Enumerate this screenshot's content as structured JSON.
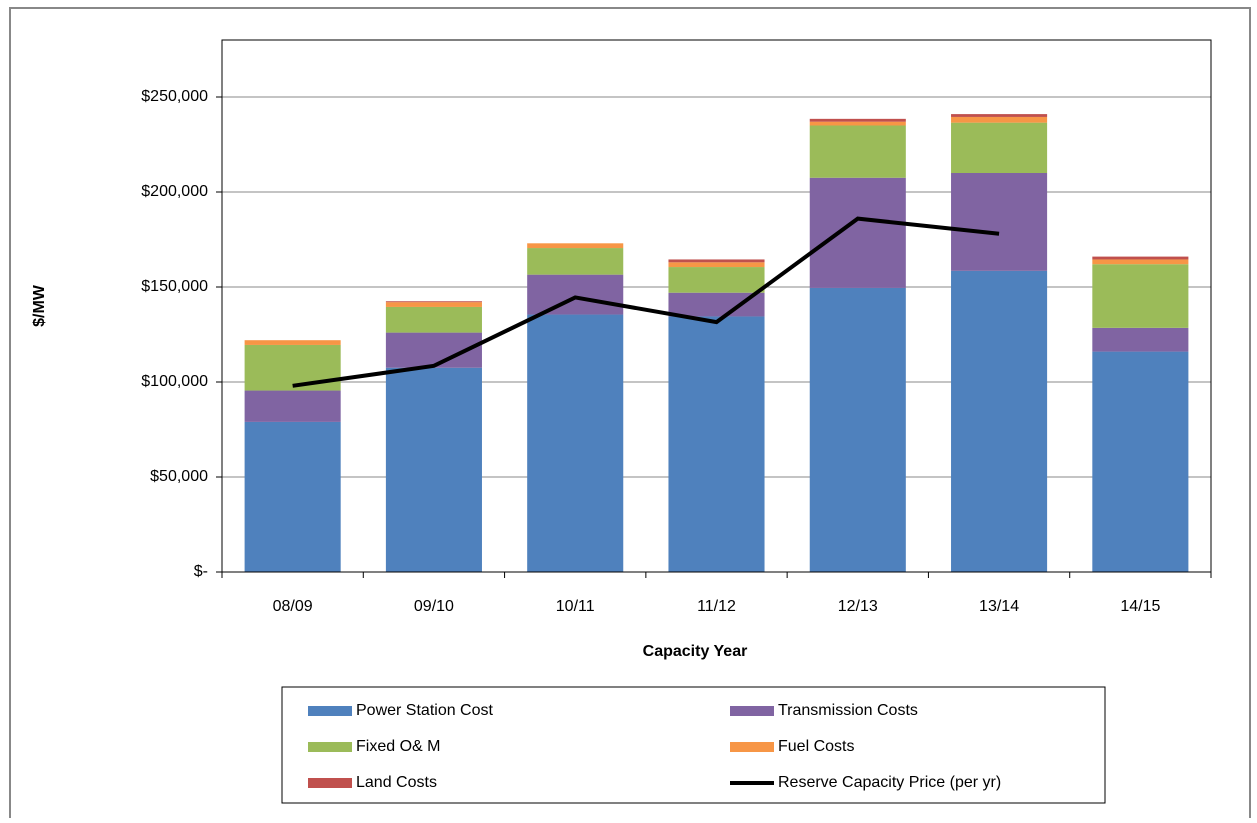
{
  "chart_data": {
    "type": "bar",
    "stacked": true,
    "x_label": "Capacity Year",
    "y_label": "$/MW",
    "categories": [
      "08/09",
      "09/10",
      "10/11",
      "11/12",
      "12/13",
      "13/14",
      "14/15"
    ],
    "series": [
      {
        "name": "Power Station Cost",
        "color": "#4f81bd",
        "values": [
          79000,
          107500,
          135500,
          134500,
          149500,
          158500,
          116000
        ]
      },
      {
        "name": "Transmission Costs",
        "color": "#8064a2",
        "values": [
          16500,
          18500,
          21000,
          12500,
          58000,
          51500,
          12500
        ]
      },
      {
        "name": "Fixed O& M",
        "color": "#9bbb59",
        "values": [
          24000,
          13500,
          14000,
          13500,
          27500,
          26500,
          33500
        ]
      },
      {
        "name": "Fuel Costs",
        "color": "#f79646",
        "values": [
          2500,
          2500,
          2500,
          2500,
          2000,
          3000,
          2500
        ]
      },
      {
        "name": "Land Costs",
        "color": "#c0504d",
        "values": [
          0,
          500,
          0,
          1500,
          1500,
          1500,
          1500
        ]
      },
      {
        "name": "Reserve Capacity Price (per yr)",
        "type": "line",
        "color": "#000000",
        "values": [
          98000,
          108500,
          144500,
          131500,
          186000,
          178000,
          null
        ]
      }
    ],
    "ylim": [
      0,
      280000
    ],
    "yticks": [
      {
        "value": 0,
        "label": "$-"
      },
      {
        "value": 50000,
        "label": "$50,000"
      },
      {
        "value": 100000,
        "label": "$100,000"
      },
      {
        "value": 150000,
        "label": "$150,000"
      },
      {
        "value": 200000,
        "label": "$200,000"
      },
      {
        "value": 250000,
        "label": "$250,000"
      }
    ],
    "grid": true,
    "legend": "bottom"
  }
}
